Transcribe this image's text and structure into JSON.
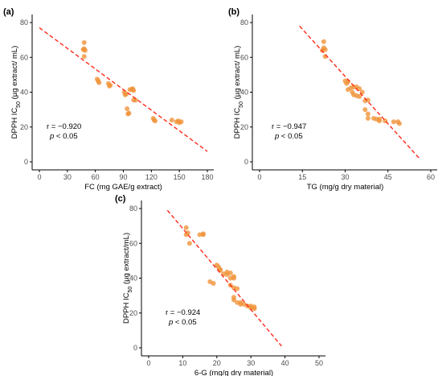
{
  "colors": {
    "point": "#f0933a",
    "trend": "#ff2a1a"
  },
  "chart_data": [
    {
      "type": "scatter",
      "panel_label": "(a)",
      "xlabel": "FC (mg GAE/g extract)",
      "ylabel_main": "DPPH IC",
      "ylabel_sub": "50",
      "ylabel_rest": " (µg extract/ mL)",
      "xlim": [
        0,
        180
      ],
      "ylim": [
        0,
        80
      ],
      "xticks": [
        0,
        30,
        60,
        90,
        120,
        150,
        180
      ],
      "yticks": [
        0,
        20,
        40,
        60,
        80
      ],
      "annotation": {
        "r": "r = −0.920",
        "p_italic": "p",
        "p_rest": " < 0.05"
      },
      "trendline": [
        [
          0,
          77
        ],
        [
          180,
          6
        ]
      ],
      "points": [
        [
          48,
          68.5
        ],
        [
          48,
          65
        ],
        [
          49,
          64
        ],
        [
          47,
          64.5
        ],
        [
          48,
          60.5
        ],
        [
          62,
          47.5
        ],
        [
          63,
          46.5
        ],
        [
          64,
          45.5
        ],
        [
          74,
          45
        ],
        [
          75,
          43.5
        ],
        [
          76,
          44
        ],
        [
          91,
          40
        ],
        [
          92,
          38.5
        ],
        [
          93,
          39
        ],
        [
          94,
          30.5
        ],
        [
          95,
          27.5
        ],
        [
          96,
          28
        ],
        [
          97,
          41.5
        ],
        [
          99,
          41.5
        ],
        [
          100,
          42
        ],
        [
          101,
          41
        ],
        [
          101,
          35.5
        ],
        [
          103,
          35.5
        ],
        [
          122,
          25
        ],
        [
          123,
          24
        ],
        [
          124,
          23.5
        ],
        [
          142,
          24
        ],
        [
          147,
          23
        ],
        [
          149,
          23.5
        ],
        [
          150,
          22.5
        ],
        [
          152,
          23
        ]
      ]
    },
    {
      "type": "scatter",
      "panel_label": "(b)",
      "xlabel": "TG (mg/g dry material)",
      "ylabel_main": "DPPH IC",
      "ylabel_sub": "50",
      "ylabel_rest": " (µg extract/ mL)",
      "xlim": [
        0,
        60
      ],
      "ylim": [
        0,
        80
      ],
      "xticks": [
        0,
        15,
        30,
        45,
        60
      ],
      "yticks": [
        0,
        20,
        40,
        60,
        80
      ],
      "annotation": {
        "r": "r = −0.947",
        "p_italic": "p",
        "p_rest": " < 0.05"
      },
      "trendline": [
        [
          14,
          78
        ],
        [
          56,
          2
        ]
      ],
      "points": [
        [
          22.5,
          69
        ],
        [
          22.5,
          65.5
        ],
        [
          23,
          64.5
        ],
        [
          22,
          64
        ],
        [
          23,
          60.5
        ],
        [
          30,
          46.5
        ],
        [
          30.5,
          45
        ],
        [
          31,
          46
        ],
        [
          31,
          41.5
        ],
        [
          32,
          42.5
        ],
        [
          33,
          43
        ],
        [
          32.5,
          40
        ],
        [
          33,
          38.5
        ],
        [
          34,
          38
        ],
        [
          35,
          37.5
        ],
        [
          34,
          43
        ],
        [
          35,
          42
        ],
        [
          36,
          40
        ],
        [
          37,
          35
        ],
        [
          38,
          35.5
        ],
        [
          37,
          30
        ],
        [
          38,
          27.5
        ],
        [
          38,
          25
        ],
        [
          40,
          25
        ],
        [
          41,
          24.5
        ],
        [
          42,
          24.5
        ],
        [
          42,
          23.5
        ],
        [
          44,
          23.5
        ],
        [
          47,
          23
        ],
        [
          48.5,
          23
        ],
        [
          49,
          22
        ]
      ]
    },
    {
      "type": "scatter",
      "panel_label": "(c)",
      "xlabel": "6-G (mg/g dry material)",
      "ylabel_main": "DPPH IC",
      "ylabel_sub": "50",
      "ylabel_rest": " (µg extract/mL)",
      "xlim": [
        0,
        50
      ],
      "ylim": [
        0,
        80
      ],
      "xticks": [
        0,
        10,
        20,
        30,
        40,
        50
      ],
      "yticks": [
        0,
        20,
        40,
        60,
        80
      ],
      "annotation": {
        "r": "r = −0.924",
        "p_italic": "p",
        "p_rest": " < 0.05"
      },
      "trendline": [
        [
          5.5,
          79
        ],
        [
          39,
          1
        ]
      ],
      "points": [
        [
          11,
          69
        ],
        [
          11.5,
          66
        ],
        [
          11,
          65
        ],
        [
          12,
          60
        ],
        [
          15,
          65
        ],
        [
          16,
          65.5
        ],
        [
          16,
          65
        ],
        [
          18,
          38
        ],
        [
          19,
          37
        ],
        [
          20,
          47.5
        ],
        [
          20.5,
          46.5
        ],
        [
          21,
          45
        ],
        [
          21,
          44.5
        ],
        [
          22,
          42.5
        ],
        [
          23,
          43.5
        ],
        [
          23,
          42
        ],
        [
          24,
          43
        ],
        [
          24,
          40
        ],
        [
          25,
          41
        ],
        [
          25,
          40
        ],
        [
          24,
          36
        ],
        [
          25,
          34.5
        ],
        [
          26,
          34
        ],
        [
          25,
          29
        ],
        [
          25,
          27.5
        ],
        [
          26,
          26
        ],
        [
          27,
          26
        ],
        [
          27,
          25
        ],
        [
          28,
          25
        ],
        [
          29,
          24
        ],
        [
          30,
          24
        ],
        [
          30,
          23
        ],
        [
          31,
          22.5
        ],
        [
          31,
          23.5
        ]
      ]
    }
  ]
}
